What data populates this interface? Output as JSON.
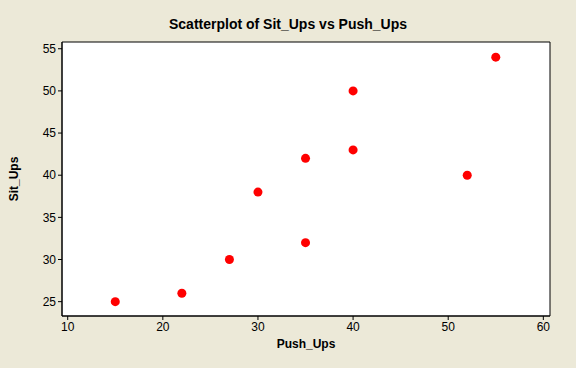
{
  "chart_data": {
    "type": "scatter",
    "title": "Scatterplot of Sit_Ups vs Push_Ups",
    "x_label": "Push_Ups",
    "y_label": "Sit_Ups",
    "x": [
      15,
      22,
      27,
      30,
      35,
      35,
      40,
      40,
      52,
      55
    ],
    "values": [
      25,
      26,
      30,
      38,
      42,
      32,
      50,
      43,
      40,
      54
    ],
    "color": "#ff0000",
    "marker": "circle",
    "xlim": [
      9.4,
      60.7
    ],
    "ylim": [
      23.3,
      55.8
    ],
    "xticks": [
      10,
      20,
      30,
      40,
      50,
      60
    ],
    "yticks": [
      25,
      30,
      35,
      40,
      45,
      50,
      55
    ],
    "grid": false
  }
}
